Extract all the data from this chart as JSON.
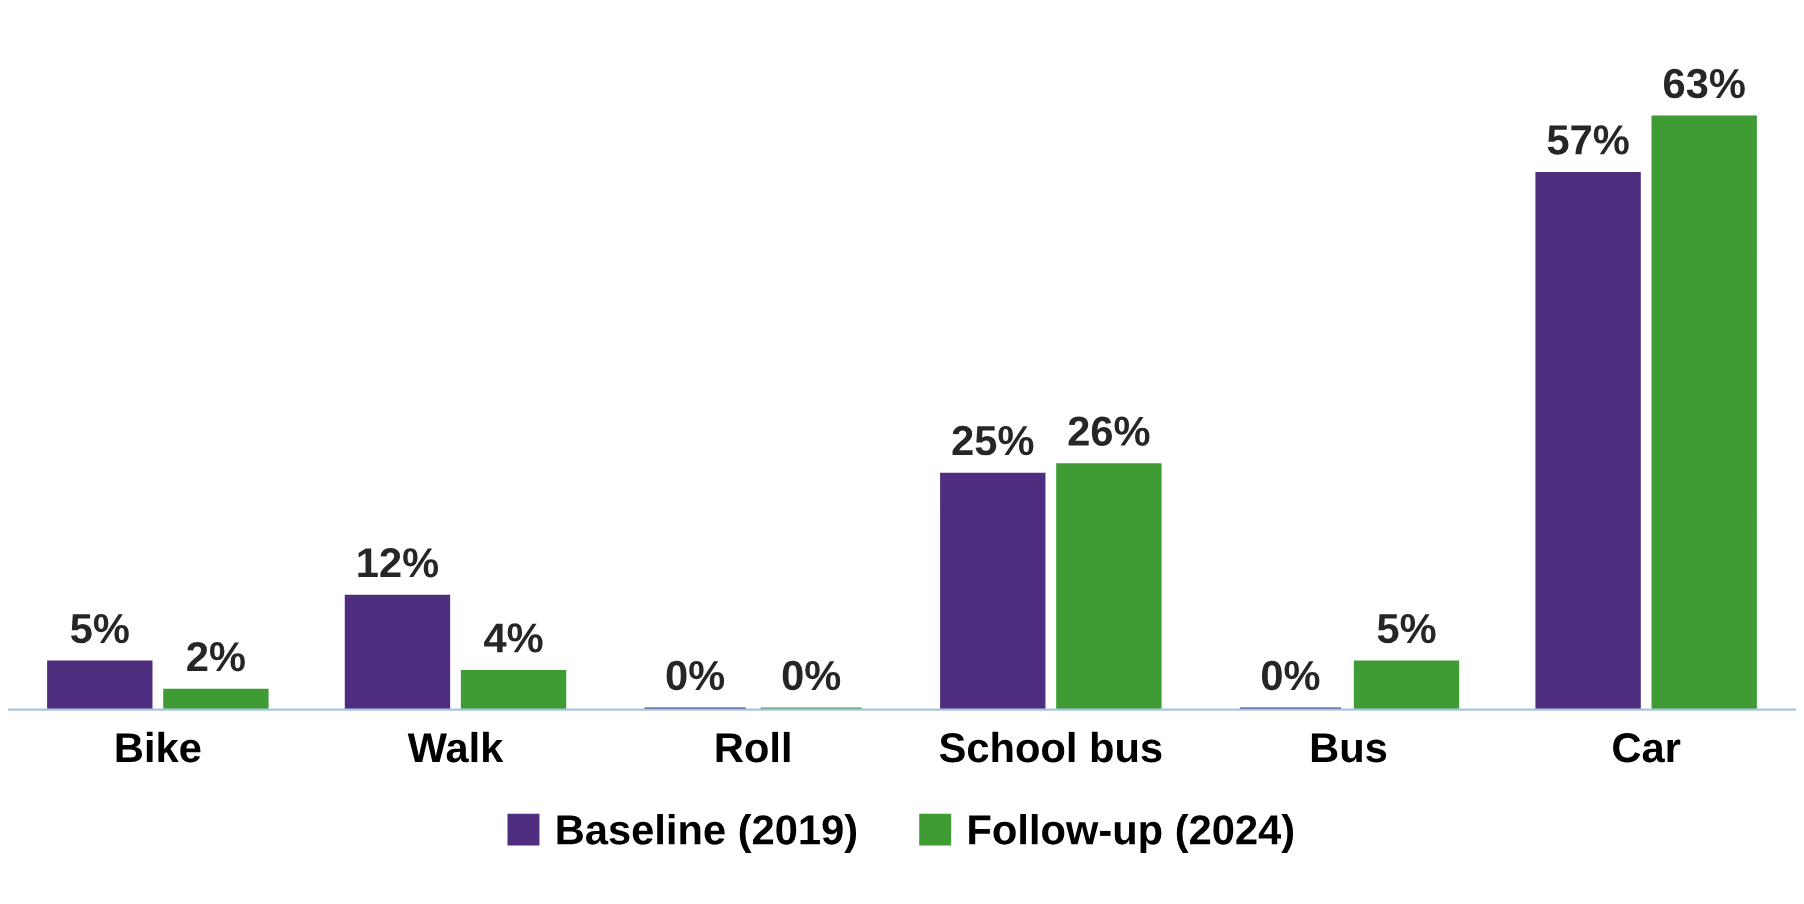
{
  "chart_data": {
    "type": "bar",
    "categories": [
      "Bike",
      "Walk",
      "Roll",
      "School bus",
      "Bus",
      "Car"
    ],
    "series": [
      {
        "name": "Baseline (2019)",
        "color": "#4f2d7f",
        "values": [
          5,
          12,
          0,
          25,
          0,
          57
        ],
        "value_labels": [
          "5%",
          "12%",
          "0%",
          "25%",
          "0%",
          "57%"
        ]
      },
      {
        "name": "Follow-up (2024)",
        "color": "#3f9c35",
        "values": [
          2,
          4,
          0,
          26,
          5,
          63
        ],
        "value_labels": [
          "2%",
          "4%",
          "0%",
          "26%",
          "5%",
          "63%"
        ]
      }
    ],
    "legend": "bottom",
    "grid": false
  }
}
